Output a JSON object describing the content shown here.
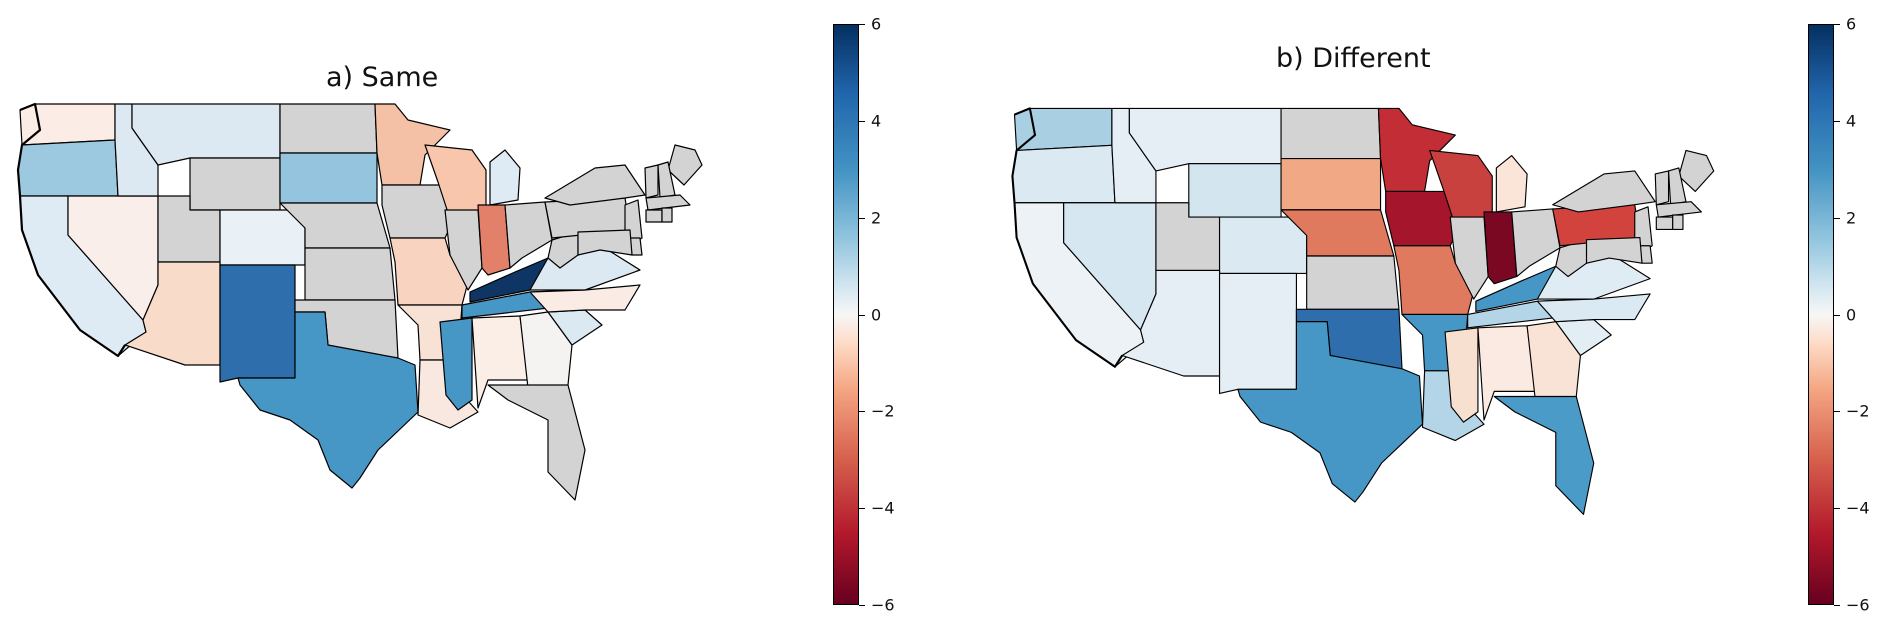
{
  "figure": {
    "panels": [
      {
        "id": "a",
        "title": "a) Same",
        "colorbar": {
          "min": -6,
          "max": 6,
          "ticks": [
            "6",
            "4",
            "2",
            "0",
            "−2",
            "−4",
            "−6"
          ],
          "colormap": "RdBu"
        },
        "state_colors": {
          "WA": "#fbece5",
          "OR": "#9dc9e0",
          "CA": "#deebf4",
          "NV": "#f9eee9",
          "ID": "#dde9f2",
          "MT": "#dde9f2",
          "WY": "#d3d3d3",
          "UT": "#d3d3d3",
          "AZ": "#f8dcc9",
          "CO": "#e9f1f6",
          "NM": "#2f6eac",
          "ND": "#d3d3d3",
          "SD": "#94c4de",
          "NE": "#d3d3d3",
          "KS": "#d3d3d3",
          "OK": "#d3d3d3",
          "TX": "#4797c6",
          "MN": "#f5c1a6",
          "IA": "#d3d3d3",
          "MO": "#f8d4c0",
          "AR": "#f8e1d5",
          "LA": "#f8e8df",
          "WI": "#f7c6ad",
          "IL": "#d3d3d3",
          "MI": "#deebf4",
          "IN": "#e3806a",
          "OH": "#d3d3d3",
          "KY": "#0f3565",
          "TN": "#4797c6",
          "MS": "#4797c6",
          "AL": "#fbeee7",
          "GA": "#f5f3f2",
          "FL": "#d3d3d3",
          "SC": "#dbe9f2",
          "NC": "#faebe4",
          "VA": "#dde9f2",
          "WV": "#d3d3d3",
          "PA": "#d3d3d3",
          "NY": "#d3d3d3",
          "ME": "#d3d3d3",
          "VT": "#d3d3d3",
          "NH": "#d3d3d3",
          "MA": "#d3d3d3",
          "CT": "#d3d3d3",
          "RI": "#d3d3d3",
          "NJ": "#d3d3d3",
          "DE": "#d3d3d3",
          "MD": "#d3d3d3"
        }
      },
      {
        "id": "b",
        "title": "b) Different",
        "colorbar": {
          "min": -6,
          "max": 6,
          "ticks": [
            "6",
            "4",
            "2",
            "0",
            "−2",
            "−4",
            "−6"
          ],
          "colormap": "RdBu"
        },
        "state_colors": {
          "WA": "#a9cfe3",
          "OR": "#dbe9f2",
          "CA": "#ecf2f5",
          "NV": "#d7e7f1",
          "ID": "#e4eef4",
          "MT": "#e4eef4",
          "WY": "#d3e6f0",
          "UT": "#d3d3d3",
          "AZ": "#e4eef4",
          "CO": "#dbe9f2",
          "NM": "#e4eef4",
          "ND": "#d3d3d3",
          "SD": "#f1a985",
          "NE": "#e07a5e",
          "KS": "#d3d3d3",
          "OK": "#2f6eac",
          "TX": "#4797c6",
          "MN": "#c32d36",
          "IA": "#a5152b",
          "MO": "#e07a5e",
          "AR": "#4797c6",
          "LA": "#b4d5e7",
          "WI": "#c9413e",
          "IL": "#d3d3d3",
          "MI": "#fbe5d8",
          "IN": "#7a0822",
          "OH": "#d3d3d3",
          "KY": "#4797c6",
          "TN": "#b4d5e7",
          "MS": "#f8e0d1",
          "AL": "#faeae1",
          "GA": "#f8e3d6",
          "FL": "#4b9bc9",
          "SC": "#e3eef4",
          "NC": "#dbe9f2",
          "VA": "#e0ecf3",
          "WV": "#d3d3d3",
          "PA": "#d3433e",
          "NY": "#d3d3d3",
          "ME": "#d3d3d3",
          "VT": "#d3d3d3",
          "NH": "#d3d3d3",
          "MA": "#d3d3d3",
          "CT": "#d3d3d3",
          "RI": "#d3d3d3",
          "NJ": "#d3d3d3",
          "DE": "#d3d3d3",
          "MD": "#d3d3d3"
        }
      }
    ]
  }
}
